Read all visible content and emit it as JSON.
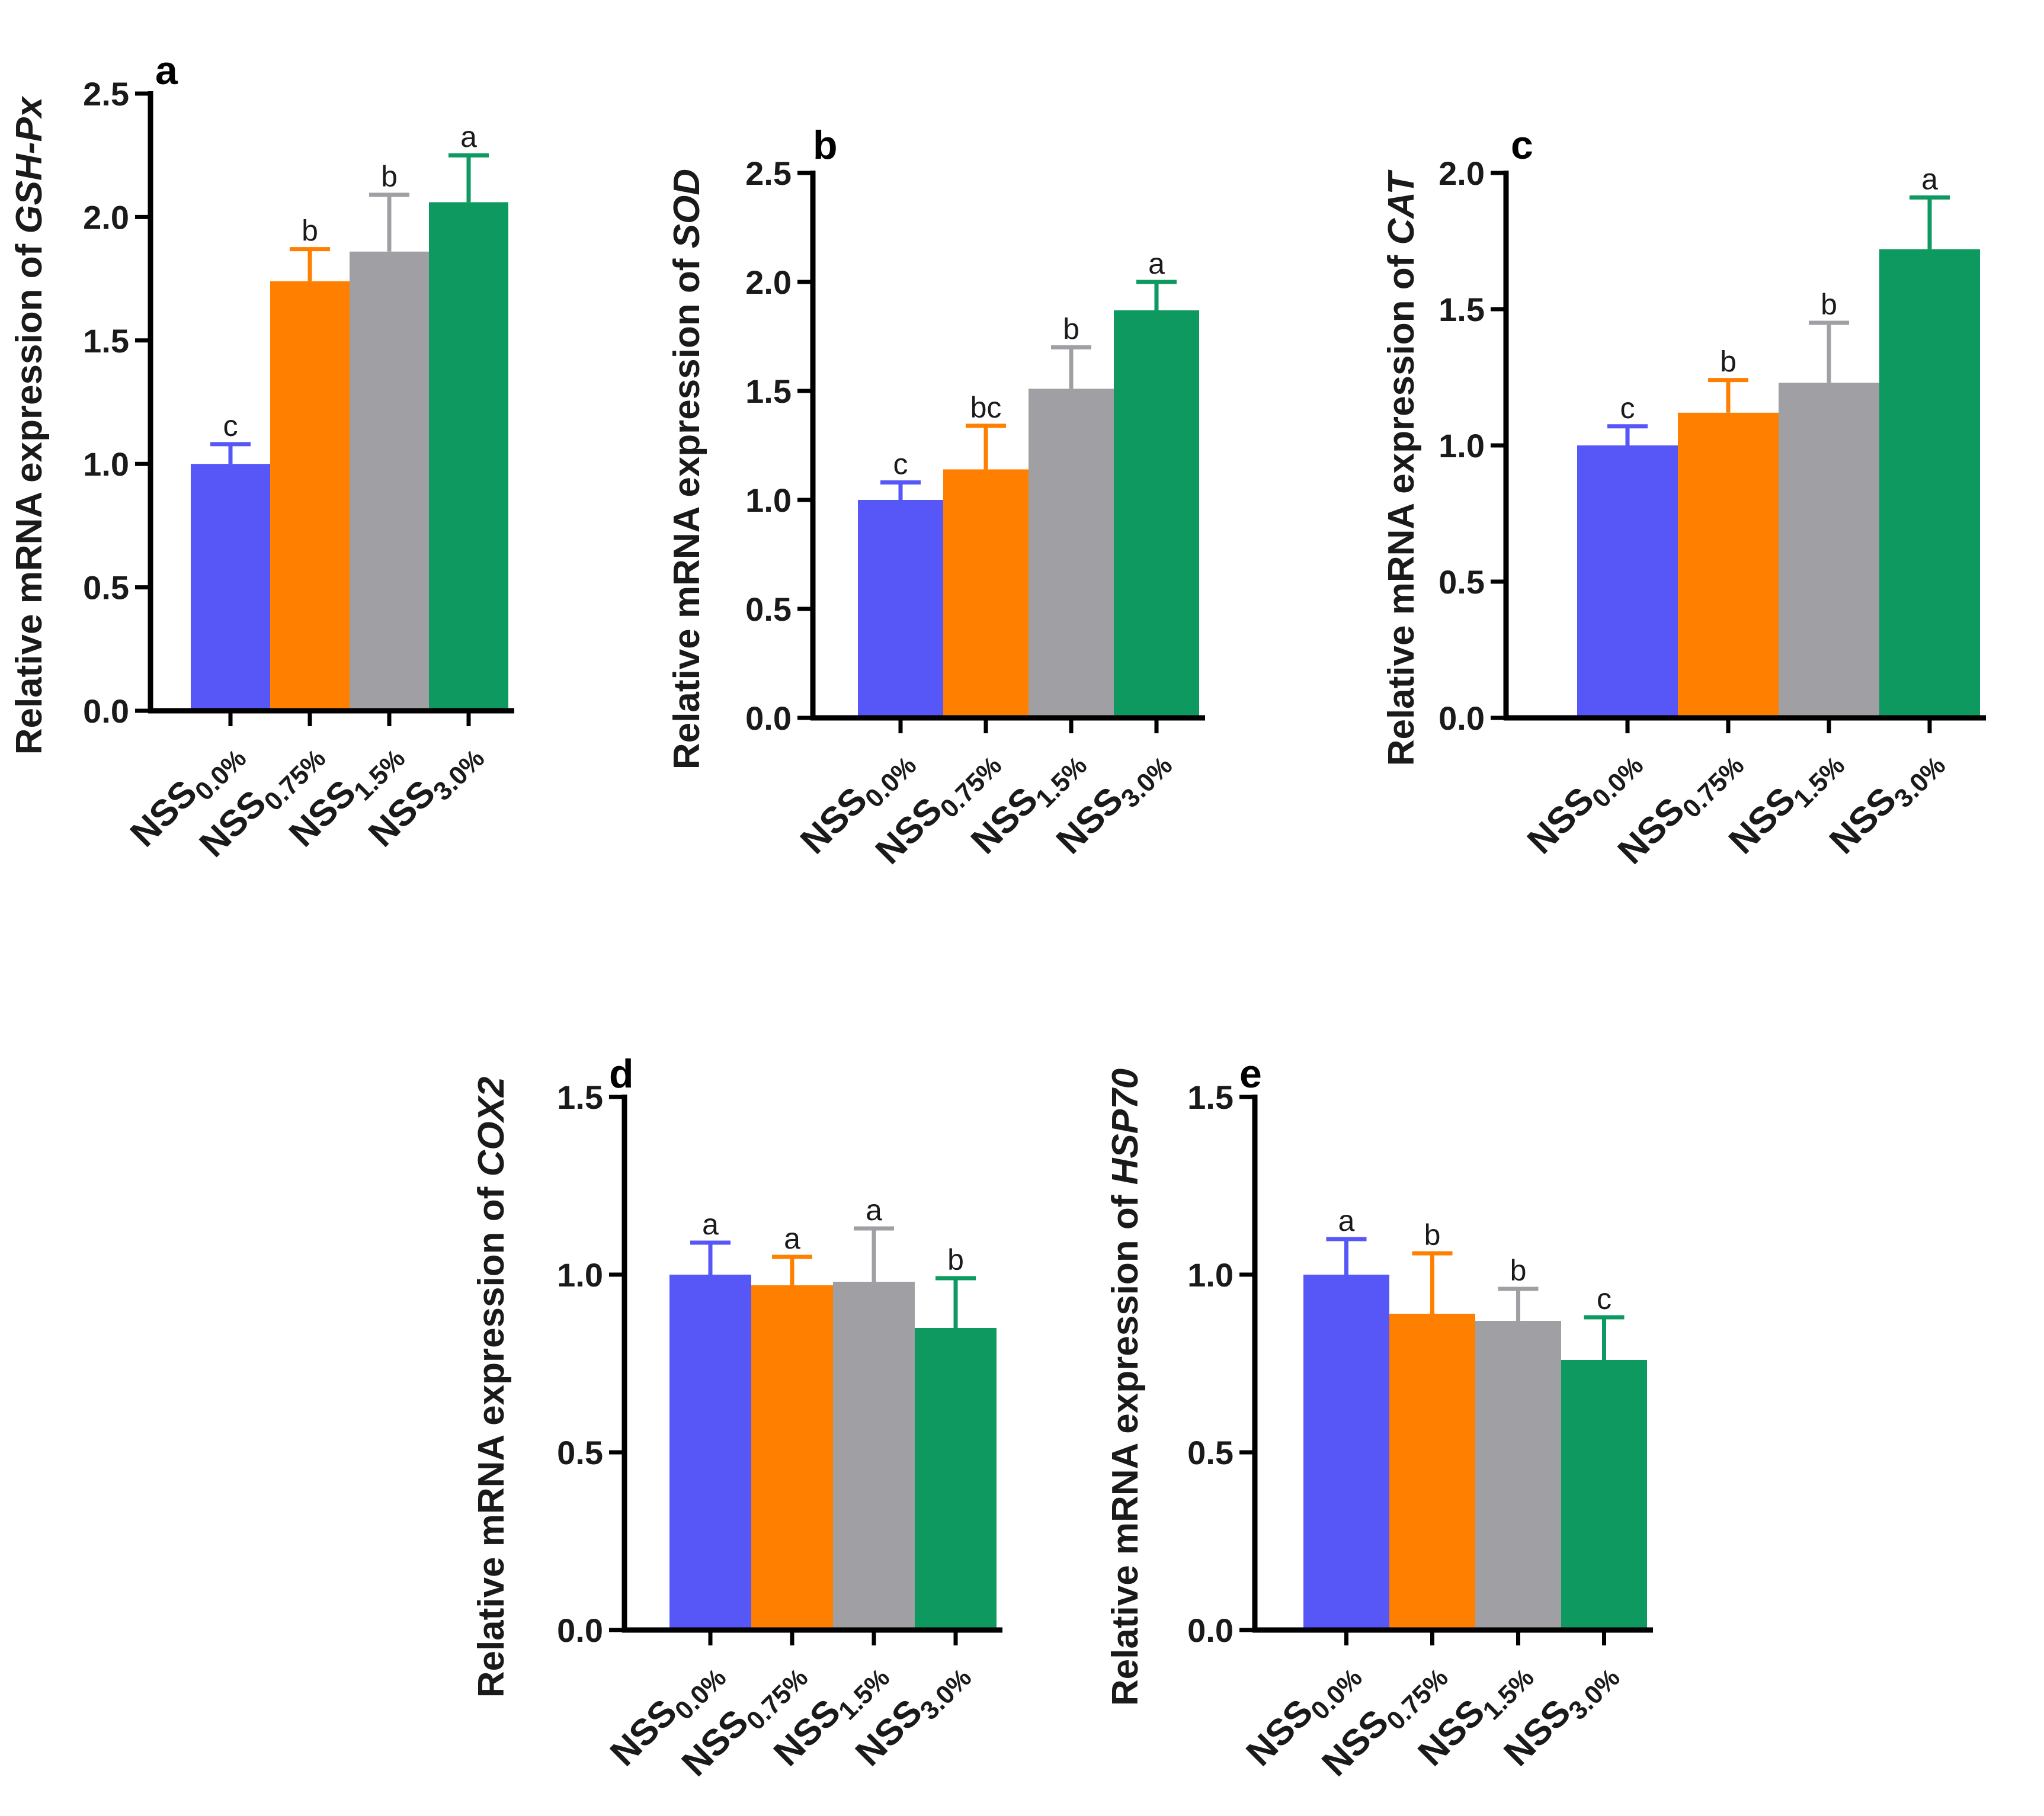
{
  "colors": [
    "#5757f7",
    "#ff7f00",
    "#a0a0a4",
    "#0d995f"
  ],
  "chart_data": [
    {
      "panel": "a",
      "type": "bar",
      "ylabel_prefix": "Relative mRNA expression of ",
      "ylabel_gene": "GSH-Px",
      "categories": [
        {
          "main": "NSS",
          "sub": "0.0%"
        },
        {
          "main": "NSS",
          "sub": "0.75%"
        },
        {
          "main": "NSS",
          "sub": "1.5%"
        },
        {
          "main": "NSS",
          "sub": "3.0%"
        }
      ],
      "values": [
        1.0,
        1.74,
        1.86,
        2.06
      ],
      "errors": [
        0.08,
        0.13,
        0.23,
        0.19
      ],
      "letters": [
        "c",
        "b",
        "b",
        "a"
      ],
      "ylim": [
        0,
        2.5
      ],
      "yticks": [
        "0.0",
        "0.5",
        "1.0",
        "1.5",
        "2.0",
        "2.5"
      ]
    },
    {
      "panel": "b",
      "type": "bar",
      "ylabel_prefix": "Relative mRNA expression of ",
      "ylabel_gene": "SOD",
      "categories": [
        {
          "main": "NSS",
          "sub": "0.0%"
        },
        {
          "main": "NSS",
          "sub": "0.75%"
        },
        {
          "main": "NSS",
          "sub": "1.5%"
        },
        {
          "main": "NSS",
          "sub": "3.0%"
        }
      ],
      "values": [
        1.0,
        1.14,
        1.51,
        1.87
      ],
      "errors": [
        0.08,
        0.2,
        0.19,
        0.13
      ],
      "letters": [
        "c",
        "bc",
        "b",
        "a"
      ],
      "ylim": [
        0,
        2.5
      ],
      "yticks": [
        "0.0",
        "0.5",
        "1.0",
        "1.5",
        "2.0",
        "2.5"
      ]
    },
    {
      "panel": "c",
      "type": "bar",
      "ylabel_prefix": "Relative mRNA expression of ",
      "ylabel_gene": "CAT",
      "categories": [
        {
          "main": "NSS",
          "sub": "0.0%"
        },
        {
          "main": "NSS",
          "sub": "0.75%"
        },
        {
          "main": "NSS",
          "sub": "1.5%"
        },
        {
          "main": "NSS",
          "sub": "3.0%"
        }
      ],
      "values": [
        1.0,
        1.12,
        1.23,
        1.72
      ],
      "errors": [
        0.07,
        0.12,
        0.22,
        0.19
      ],
      "letters": [
        "c",
        "b",
        "b",
        "a"
      ],
      "ylim": [
        0,
        2.0
      ],
      "yticks": [
        "0.0",
        "0.5",
        "1.0",
        "1.5",
        "2.0"
      ]
    },
    {
      "panel": "d",
      "type": "bar",
      "ylabel_prefix": "Relative mRNA expression of ",
      "ylabel_gene": "COX2",
      "categories": [
        {
          "main": "NSS",
          "sub": "0.0%"
        },
        {
          "main": "NSS",
          "sub": "0.75%"
        },
        {
          "main": "NSS",
          "sub": "1.5%"
        },
        {
          "main": "NSS",
          "sub": "3.0%"
        }
      ],
      "values": [
        1.0,
        0.97,
        0.98,
        0.85
      ],
      "errors": [
        0.09,
        0.08,
        0.15,
        0.14
      ],
      "letters": [
        "a",
        "a",
        "a",
        "b"
      ],
      "ylim": [
        0,
        1.5
      ],
      "yticks": [
        "0.0",
        "0.5",
        "1.0",
        "1.5"
      ]
    },
    {
      "panel": "e",
      "type": "bar",
      "ylabel_prefix": "Relative mRNA expression of  ",
      "ylabel_gene": "HSP70",
      "categories": [
        {
          "main": "NSS",
          "sub": "0.0%"
        },
        {
          "main": "NSS",
          "sub": "0.75%"
        },
        {
          "main": "NSS",
          "sub": "1.5%"
        },
        {
          "main": "NSS",
          "sub": "3.0%"
        }
      ],
      "values": [
        1.0,
        0.89,
        0.87,
        0.76
      ],
      "errors": [
        0.1,
        0.17,
        0.09,
        0.12
      ],
      "letters": [
        "a",
        "b",
        "b",
        "c"
      ],
      "ylim": [
        0,
        1.5
      ],
      "yticks": [
        "0.0",
        "0.5",
        "1.0",
        "1.5"
      ]
    }
  ]
}
